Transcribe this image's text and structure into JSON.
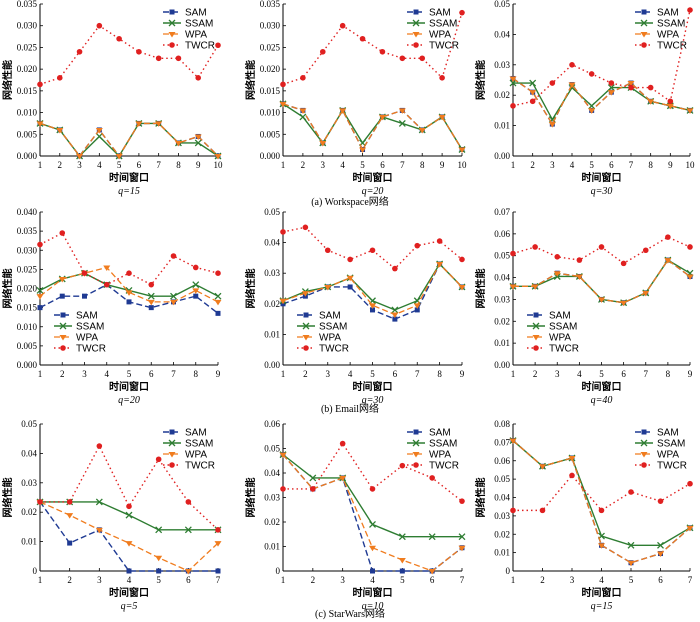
{
  "colors": {
    "SAM": "#1f3a93",
    "SSAM": "#2e7d32",
    "WPA": "#f07c1e",
    "TWCR": "#e02020"
  },
  "series_names": [
    "SAM",
    "SSAM",
    "WPA",
    "TWCR"
  ],
  "xlabel": "时间窗口",
  "ylabel": "网络性能",
  "captions": [
    "(a)  Workspace网络",
    "(b)  Email网络",
    "(c)  StarWars网络"
  ],
  "chart_data": [
    {
      "type": "line",
      "q_label": "q=15",
      "legend": "top-right",
      "x": [
        1,
        2,
        3,
        4,
        5,
        6,
        7,
        8,
        9,
        10
      ],
      "xlim": [
        1,
        10
      ],
      "ylim": [
        0,
        0.035
      ],
      "yticks": [
        "0.000",
        "0.005",
        "0.010",
        "0.015",
        "0.020",
        "0.025",
        "0.030",
        "0.035"
      ],
      "series": [
        {
          "name": "SAM",
          "values": [
            0.0075,
            0.006,
            0.0,
            0.006,
            0.0,
            0.0075,
            0.0075,
            0.003,
            0.0045,
            0.0
          ]
        },
        {
          "name": "SSAM",
          "values": [
            0.0075,
            0.006,
            0.0,
            0.0045,
            0.0,
            0.0075,
            0.0075,
            0.003,
            0.003,
            0.0
          ]
        },
        {
          "name": "WPA",
          "values": [
            0.0075,
            0.006,
            0.0,
            0.006,
            0.0,
            0.0075,
            0.0075,
            0.003,
            0.0045,
            0.0
          ]
        },
        {
          "name": "TWCR",
          "values": [
            0.0165,
            0.018,
            0.024,
            0.03,
            0.027,
            0.024,
            0.0225,
            0.0225,
            0.018,
            0.0255
          ]
        }
      ]
    },
    {
      "type": "line",
      "q_label": "q=20",
      "legend": "top-right",
      "x": [
        1,
        2,
        3,
        4,
        5,
        6,
        7,
        8,
        9,
        10
      ],
      "xlim": [
        1,
        10
      ],
      "ylim": [
        0,
        0.035
      ],
      "yticks": [
        "0.000",
        "0.005",
        "0.010",
        "0.015",
        "0.020",
        "0.025",
        "0.030",
        "0.035"
      ],
      "series": [
        {
          "name": "SAM",
          "values": [
            0.012,
            0.0105,
            0.003,
            0.0105,
            0.0015,
            0.009,
            0.0105,
            0.006,
            0.009,
            0.0015
          ]
        },
        {
          "name": "SSAM",
          "values": [
            0.012,
            0.009,
            0.003,
            0.0105,
            0.003,
            0.009,
            0.0075,
            0.006,
            0.009,
            0.0015
          ]
        },
        {
          "name": "WPA",
          "values": [
            0.012,
            0.0105,
            0.003,
            0.0105,
            0.0015,
            0.009,
            0.0105,
            0.006,
            0.009,
            0.0015
          ]
        },
        {
          "name": "TWCR",
          "values": [
            0.0165,
            0.018,
            0.024,
            0.03,
            0.027,
            0.024,
            0.0225,
            0.0225,
            0.018,
            0.033
          ]
        }
      ]
    },
    {
      "type": "line",
      "q_label": "q=30",
      "legend": "top-right",
      "x": [
        1,
        2,
        3,
        4,
        5,
        6,
        7,
        8,
        9,
        10
      ],
      "xlim": [
        1,
        10
      ],
      "ylim": [
        0,
        0.05
      ],
      "yticks": [
        "0.00",
        "0.01",
        "0.02",
        "0.03",
        "0.04",
        "0.05"
      ],
      "series": [
        {
          "name": "SAM",
          "values": [
            0.0255,
            0.021,
            0.0105,
            0.0235,
            0.015,
            0.021,
            0.024,
            0.018,
            0.0165,
            0.015
          ]
        },
        {
          "name": "SSAM",
          "values": [
            0.024,
            0.024,
            0.012,
            0.0225,
            0.0165,
            0.0225,
            0.0225,
            0.018,
            0.0165,
            0.015
          ]
        },
        {
          "name": "WPA",
          "values": [
            0.0255,
            0.021,
            0.0105,
            0.0235,
            0.015,
            0.021,
            0.024,
            0.018,
            0.0165,
            0.015
          ]
        },
        {
          "name": "TWCR",
          "values": [
            0.0165,
            0.018,
            0.024,
            0.03,
            0.027,
            0.024,
            0.0225,
            0.0225,
            0.018,
            0.048
          ]
        }
      ]
    },
    {
      "type": "line",
      "q_label": "q=20",
      "legend": "bottom-left",
      "x": [
        1,
        2,
        3,
        4,
        5,
        6,
        7,
        8,
        9
      ],
      "xlim": [
        1,
        9
      ],
      "ylim": [
        0,
        0.04
      ],
      "yticks": [
        "0.000",
        "0.005",
        "0.010",
        "0.015",
        "0.020",
        "0.025",
        "0.030",
        "0.035",
        "0.040"
      ],
      "series": [
        {
          "name": "SAM",
          "values": [
            0.015,
            0.018,
            0.018,
            0.021,
            0.0165,
            0.015,
            0.0165,
            0.018,
            0.0135
          ]
        },
        {
          "name": "SSAM",
          "values": [
            0.0195,
            0.0225,
            0.024,
            0.021,
            0.0195,
            0.018,
            0.018,
            0.021,
            0.018
          ]
        },
        {
          "name": "WPA",
          "values": [
            0.018,
            0.0225,
            0.024,
            0.0255,
            0.019,
            0.0165,
            0.0165,
            0.0195,
            0.0165
          ]
        },
        {
          "name": "TWCR",
          "values": [
            0.0315,
            0.0345,
            0.024,
            0.021,
            0.024,
            0.021,
            0.0285,
            0.0255,
            0.024
          ]
        }
      ]
    },
    {
      "type": "line",
      "q_label": "q=30",
      "legend": "bottom-left",
      "x": [
        1,
        2,
        3,
        4,
        5,
        6,
        7,
        8,
        9
      ],
      "xlim": [
        1,
        9
      ],
      "ylim": [
        0,
        0.05
      ],
      "yticks": [
        "0.00",
        "0.01",
        "0.02",
        "0.03",
        "0.04",
        "0.05"
      ],
      "series": [
        {
          "name": "SAM",
          "values": [
            0.02,
            0.0225,
            0.0255,
            0.0255,
            0.018,
            0.015,
            0.018,
            0.033,
            0.0255
          ]
        },
        {
          "name": "SSAM",
          "values": [
            0.021,
            0.024,
            0.0255,
            0.0285,
            0.021,
            0.018,
            0.021,
            0.033,
            0.0255
          ]
        },
        {
          "name": "WPA",
          "values": [
            0.021,
            0.0235,
            0.0255,
            0.0285,
            0.0195,
            0.0165,
            0.0195,
            0.033,
            0.0255
          ]
        },
        {
          "name": "TWCR",
          "values": [
            0.0435,
            0.045,
            0.0375,
            0.0345,
            0.0375,
            0.0315,
            0.039,
            0.0405,
            0.0345
          ]
        }
      ]
    },
    {
      "type": "line",
      "q_label": "q=40",
      "legend": "bottom-left",
      "x": [
        1,
        2,
        3,
        4,
        5,
        6,
        7,
        8,
        9
      ],
      "xlim": [
        1,
        9
      ],
      "ylim": [
        0,
        0.07
      ],
      "yticks": [
        "0.00",
        "0.01",
        "0.02",
        "0.03",
        "0.04",
        "0.05",
        "0.06",
        "0.07"
      ],
      "series": [
        {
          "name": "SAM",
          "values": [
            0.036,
            0.036,
            0.042,
            0.0405,
            0.03,
            0.0285,
            0.033,
            0.048,
            0.0405
          ]
        },
        {
          "name": "SSAM",
          "values": [
            0.036,
            0.036,
            0.0405,
            0.0405,
            0.03,
            0.0285,
            0.033,
            0.048,
            0.042
          ]
        },
        {
          "name": "WPA",
          "values": [
            0.036,
            0.036,
            0.042,
            0.0405,
            0.03,
            0.0285,
            0.033,
            0.048,
            0.0405
          ]
        },
        {
          "name": "TWCR",
          "values": [
            0.051,
            0.054,
            0.0495,
            0.048,
            0.054,
            0.0465,
            0.0525,
            0.0585,
            0.054
          ]
        }
      ]
    },
    {
      "type": "line",
      "q_label": "q=5",
      "legend": "top-right",
      "x": [
        1,
        2,
        3,
        4,
        5,
        6,
        7
      ],
      "xlim": [
        1,
        7
      ],
      "ylim": [
        0,
        0.05
      ],
      "yticks": [
        "0",
        "0.01",
        "0.02",
        "0.03",
        "0.04",
        "0.05"
      ],
      "series": [
        {
          "name": "SAM",
          "values": [
            0.0235,
            0.0095,
            0.014,
            0.0,
            0.0,
            0.0,
            0.0
          ]
        },
        {
          "name": "SSAM",
          "values": [
            0.0235,
            0.0235,
            0.0235,
            0.019,
            0.014,
            0.014,
            0.014
          ]
        },
        {
          "name": "WPA",
          "values": [
            0.0235,
            0.019,
            0.014,
            0.0095,
            0.0045,
            0.0,
            0.0095
          ]
        },
        {
          "name": "TWCR",
          "values": [
            0.0235,
            0.0235,
            0.0425,
            0.022,
            0.038,
            0.0235,
            0.014
          ]
        }
      ]
    },
    {
      "type": "line",
      "q_label": "q=10",
      "legend": "top-right",
      "x": [
        1,
        2,
        3,
        4,
        5,
        6,
        7
      ],
      "xlim": [
        1,
        7
      ],
      "ylim": [
        0,
        0.06
      ],
      "yticks": [
        "0",
        "0.01",
        "0.02",
        "0.03",
        "0.04",
        "0.05",
        "0.06"
      ],
      "series": [
        {
          "name": "SAM",
          "values": [
            0.0475,
            0.0335,
            0.038,
            0.0,
            0.0,
            0.0,
            0.0095
          ]
        },
        {
          "name": "SSAM",
          "values": [
            0.0475,
            0.038,
            0.038,
            0.019,
            0.014,
            0.014,
            0.014
          ]
        },
        {
          "name": "WPA",
          "values": [
            0.0475,
            0.0335,
            0.038,
            0.0095,
            0.0045,
            0.0,
            0.0095
          ]
        },
        {
          "name": "TWCR",
          "values": [
            0.0335,
            0.0335,
            0.052,
            0.0335,
            0.043,
            0.038,
            0.0285
          ]
        }
      ]
    },
    {
      "type": "line",
      "q_label": "q=15",
      "legend": "top-right",
      "x": [
        1,
        2,
        3,
        4,
        5,
        6,
        7
      ],
      "xlim": [
        1,
        7
      ],
      "ylim": [
        0,
        0.08
      ],
      "yticks": [
        "0",
        "0.01",
        "0.02",
        "0.03",
        "0.04",
        "0.05",
        "0.06",
        "0.07",
        "0.08"
      ],
      "series": [
        {
          "name": "SAM",
          "values": [
            0.071,
            0.057,
            0.0615,
            0.014,
            0.0045,
            0.0095,
            0.0235
          ]
        },
        {
          "name": "SSAM",
          "values": [
            0.071,
            0.057,
            0.0615,
            0.019,
            0.014,
            0.014,
            0.0235
          ]
        },
        {
          "name": "WPA",
          "values": [
            0.071,
            0.057,
            0.0615,
            0.014,
            0.0045,
            0.0095,
            0.0235
          ]
        },
        {
          "name": "TWCR",
          "values": [
            0.033,
            0.033,
            0.052,
            0.033,
            0.043,
            0.038,
            0.0475
          ]
        }
      ]
    }
  ]
}
